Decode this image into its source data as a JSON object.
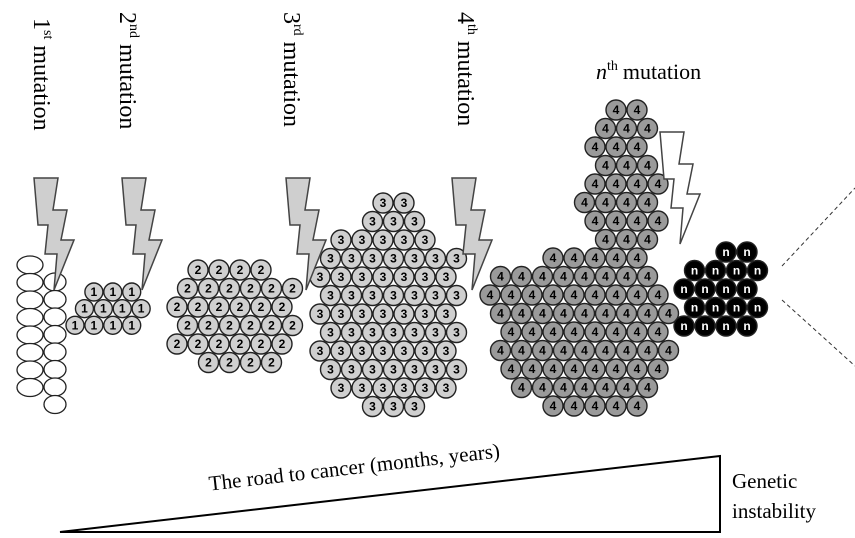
{
  "mutations": [
    {
      "number": "1",
      "suffix": "st",
      "word": "mutation"
    },
    {
      "number": "2",
      "suffix": "nd",
      "word": "mutation"
    },
    {
      "number": "3",
      "suffix": "rd",
      "word": "mutation"
    },
    {
      "number": "4",
      "suffix": "th",
      "word": "mutation"
    }
  ],
  "nth_mutation": {
    "letter": "n",
    "suffix": "th",
    "word": "mutation"
  },
  "clones": [
    {
      "label": "1"
    },
    {
      "label": "2"
    },
    {
      "label": "3"
    },
    {
      "label": "4"
    },
    {
      "label": "n"
    }
  ],
  "road_label": "The road to cancer (months, years)",
  "instability_label": {
    "line1": "Genetic",
    "line2": "instability"
  }
}
